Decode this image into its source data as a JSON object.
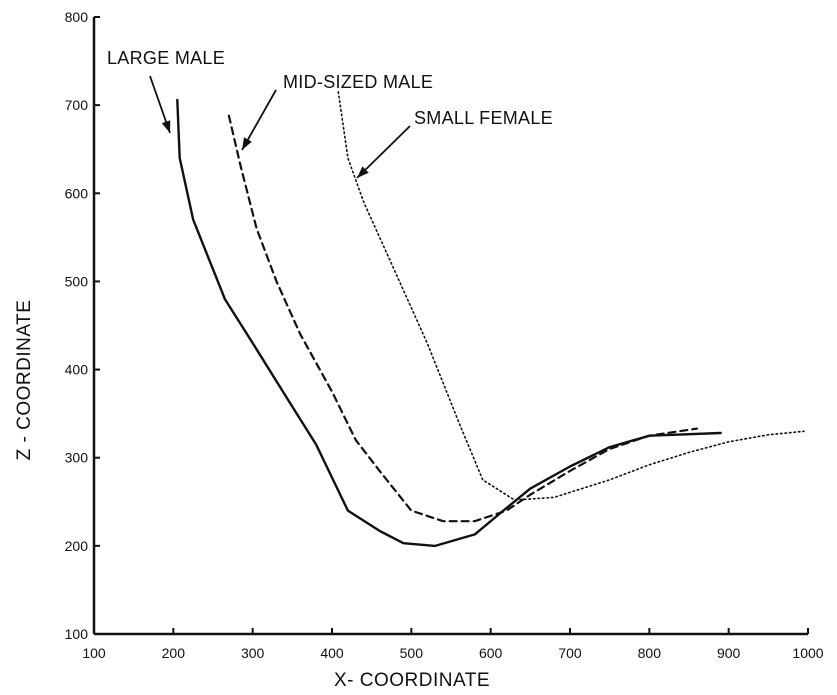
{
  "chart_data": {
    "type": "line",
    "title": "",
    "xlabel": "X- COORDINATE",
    "ylabel": "Z - COORDINATE",
    "xlim": [
      100,
      1000
    ],
    "ylim": [
      100,
      800
    ],
    "xticks": [
      "100",
      "200",
      "300",
      "400",
      "500",
      "600",
      "700",
      "800",
      "900",
      "1000"
    ],
    "yticks": [
      "100",
      "200",
      "300",
      "400",
      "500",
      "600",
      "700",
      "800"
    ],
    "grid": false,
    "legend": "none",
    "series": [
      {
        "name": "LARGE MALE",
        "style": "solid",
        "color": "#111111",
        "x": [
          205,
          208,
          225,
          265,
          300,
          345,
          380,
          420,
          460,
          490,
          530,
          580,
          620,
          650,
          700,
          750,
          800,
          890
        ],
        "y": [
          706,
          640,
          570,
          480,
          430,
          365,
          315,
          240,
          217,
          203,
          200,
          213,
          243,
          265,
          290,
          312,
          325,
          328
        ]
      },
      {
        "name": "MID-SIZED MALE",
        "style": "dashed",
        "color": "#111111",
        "x": [
          270,
          285,
          305,
          330,
          360,
          400,
          430,
          460,
          500,
          540,
          580,
          620,
          650,
          700,
          750,
          800,
          860
        ],
        "y": [
          688,
          630,
          560,
          500,
          440,
          375,
          320,
          285,
          240,
          228,
          228,
          240,
          258,
          285,
          310,
          325,
          333
        ]
      },
      {
        "name": "SMALL FEMALE",
        "style": "dotted",
        "color": "#111111",
        "x": [
          408,
          420,
          440,
          480,
          520,
          560,
          590,
          630,
          680,
          750,
          800,
          850,
          900,
          950,
          995
        ],
        "y": [
          715,
          640,
          590,
          510,
          430,
          340,
          275,
          252,
          255,
          275,
          292,
          306,
          318,
          326,
          330
        ]
      }
    ]
  }
}
